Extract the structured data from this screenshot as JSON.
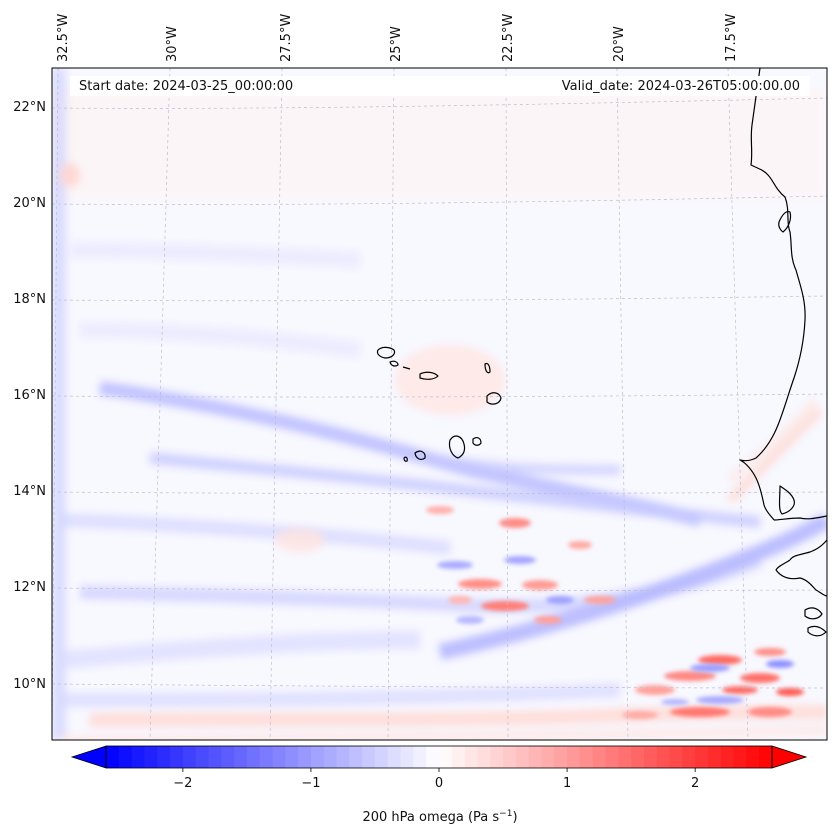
{
  "header": {
    "start_date": "Start date: 2024-03-25_00:00:00",
    "valid_date": "Valid_date: 2024-03-26T05:00:00.00"
  },
  "longitude_labels": [
    "32.5°W",
    "30°W",
    "27.5°W",
    "25°W",
    "22.5°W",
    "20°W",
    "17.5°W"
  ],
  "latitude_labels": [
    "22°N",
    "20°N",
    "18°N",
    "16°N",
    "14°N",
    "12°N",
    "10°N"
  ],
  "colorbar": {
    "ticks": [
      -2,
      -1,
      0,
      1,
      2
    ],
    "tick_labels": [
      "−2",
      "−1",
      "0",
      "1",
      "2"
    ],
    "range": [
      -2.6,
      2.6
    ],
    "label": "200 hPa omega (Pa s",
    "label_superscript": "−1",
    "label_close": ")",
    "negative_color": "#0000ff",
    "positive_color": "#ff0000"
  },
  "colors": {
    "coast": "#000000",
    "background": "#f9f9ff",
    "grid": "#b8b8c8"
  }
}
